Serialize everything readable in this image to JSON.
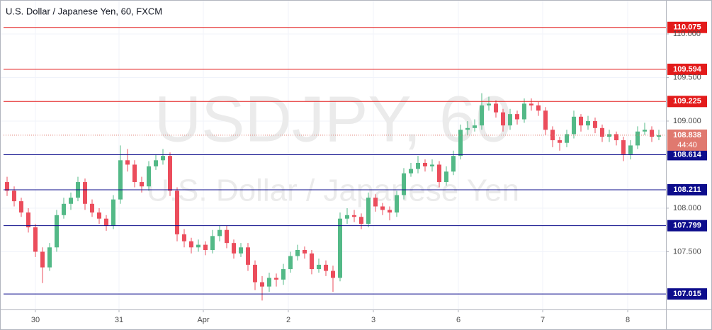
{
  "chart_data": {
    "type": "candlestick",
    "title": "U.S. Dollar / Japanese Yen, 60, FXCM",
    "watermark": "USDJPY, 60",
    "watermark_subtitle": "U.S. Dollar / Japanese Yen",
    "up_color": "#53b987",
    "down_color": "#eb4d5c",
    "grid": true,
    "xlim": [
      -0.5,
      93
    ],
    "xticks": [
      {
        "value": 4,
        "label": "30"
      },
      {
        "value": 15.8,
        "label": "31"
      },
      {
        "value": 27.7,
        "label": "Apr"
      },
      {
        "value": 39.7,
        "label": "2"
      },
      {
        "value": 51.7,
        "label": "3"
      },
      {
        "value": 63.7,
        "label": "6"
      },
      {
        "value": 75.6,
        "label": "7"
      },
      {
        "value": 87.6,
        "label": "8"
      }
    ],
    "ylim": [
      106.837,
      110.39
    ],
    "yticks": [
      {
        "value": 107.5,
        "label": "107.500"
      },
      {
        "value": 108,
        "label": "108.000"
      },
      {
        "value": 109,
        "label": "109.000"
      },
      {
        "value": 109.5,
        "label": "109.500"
      },
      {
        "value": 110,
        "label": "110.000"
      }
    ],
    "levels": [
      {
        "value": 110.075,
        "color": "#e31b1b"
      },
      {
        "value": 109.594,
        "color": "#e31b1b"
      },
      {
        "value": 109.225,
        "color": "#e31b1b"
      },
      {
        "value": 108.614,
        "color": "#0d0d8c"
      },
      {
        "value": 108.211,
        "color": "#0d0d8c"
      },
      {
        "value": 107.799,
        "color": "#0d0d8c"
      },
      {
        "value": 107.015,
        "color": "#0d0d8c"
      }
    ],
    "last_price": {
      "value": 108.838,
      "countdown": "44:40",
      "color": "#e0796f"
    },
    "open": [
      108.3,
      108.2,
      108.08,
      107.95,
      107.78,
      107.5,
      107.32,
      107.55,
      107.92,
      108.05,
      108.12,
      108.3,
      108.05,
      107.95,
      107.88,
      107.8,
      108.1,
      108.55,
      108.5,
      108.3,
      108.25,
      108.48,
      108.55,
      108.6,
      108.2,
      107.7,
      107.62,
      107.55,
      107.58,
      107.52,
      107.68,
      107.75,
      107.6,
      107.48,
      107.55,
      107.35,
      107.15,
      107.1,
      107.2,
      107.18,
      107.3,
      107.45,
      107.52,
      107.48,
      107.3,
      107.35,
      107.28,
      107.2,
      107.88,
      107.92,
      107.9,
      107.82,
      108.12,
      108.02,
      107.98,
      107.95,
      108.15,
      108.4,
      108.45,
      108.52,
      108.48,
      108.5,
      108.3,
      108.42,
      108.6,
      108.9,
      108.92,
      108.95,
      109.18,
      109.2,
      109.1,
      108.95,
      109.08,
      109.02,
      109.2,
      109.18,
      109.12,
      108.9,
      108.78,
      108.75,
      108.85,
      109.05,
      108.95,
      109.0,
      108.92,
      108.82,
      108.85,
      108.78,
      108.62,
      108.72,
      108.88,
      108.9,
      108.82
    ],
    "high": [
      108.36,
      108.25,
      108.12,
      108.0,
      107.82,
      107.55,
      107.6,
      107.98,
      108.12,
      108.18,
      108.36,
      108.34,
      108.1,
      108.0,
      107.92,
      108.15,
      108.72,
      108.68,
      108.55,
      108.36,
      108.54,
      108.62,
      108.68,
      108.64,
      108.24,
      107.76,
      107.66,
      107.64,
      107.62,
      107.75,
      107.8,
      107.8,
      107.64,
      107.6,
      107.6,
      107.4,
      107.22,
      107.26,
      107.25,
      107.36,
      107.5,
      107.58,
      107.56,
      107.52,
      107.42,
      107.4,
      107.34,
      107.95,
      108.0,
      107.98,
      107.94,
      108.18,
      108.16,
      108.06,
      108.02,
      108.2,
      108.46,
      108.52,
      108.6,
      108.56,
      108.56,
      108.54,
      108.48,
      108.66,
      108.96,
      109.0,
      109.02,
      109.32,
      109.28,
      109.24,
      109.14,
      109.14,
      109.12,
      109.26,
      109.26,
      109.22,
      109.16,
      108.94,
      108.82,
      108.9,
      109.12,
      109.08,
      109.06,
      109.04,
      108.96,
      108.9,
      108.88,
      108.82,
      108.78,
      108.94,
      108.98,
      108.94,
      108.9
    ],
    "low": [
      108.14,
      108.02,
      107.9,
      107.72,
      107.44,
      107.14,
      107.28,
      107.5,
      107.88,
      107.98,
      108.08,
      107.98,
      107.9,
      107.82,
      107.74,
      107.76,
      108.05,
      108.42,
      108.24,
      108.18,
      108.2,
      108.44,
      108.5,
      108.14,
      107.62,
      107.55,
      107.48,
      107.5,
      107.46,
      107.48,
      107.62,
      107.54,
      107.42,
      107.44,
      107.28,
      107.06,
      106.94,
      107.04,
      107.1,
      107.12,
      107.26,
      107.4,
      107.42,
      107.24,
      107.26,
      107.22,
      107.04,
      107.16,
      107.82,
      107.84,
      107.76,
      107.78,
      107.96,
      107.92,
      107.86,
      107.9,
      108.1,
      108.36,
      108.4,
      108.42,
      108.42,
      108.24,
      108.26,
      108.38,
      108.56,
      108.84,
      108.88,
      108.9,
      109.12,
      109.04,
      108.88,
      108.9,
      108.96,
      108.98,
      109.12,
      109.06,
      108.84,
      108.7,
      108.66,
      108.7,
      108.8,
      108.88,
      108.9,
      108.86,
      108.76,
      108.76,
      108.72,
      108.54,
      108.56,
      108.68,
      108.84,
      108.76,
      108.78
    ],
    "close": [
      108.2,
      108.08,
      107.95,
      107.78,
      107.5,
      107.32,
      107.55,
      107.92,
      108.05,
      108.12,
      108.3,
      108.05,
      107.95,
      107.88,
      107.8,
      108.1,
      108.55,
      108.5,
      108.3,
      108.25,
      108.48,
      108.55,
      108.6,
      108.2,
      107.7,
      107.62,
      107.55,
      107.58,
      107.52,
      107.68,
      107.75,
      107.6,
      107.48,
      107.55,
      107.35,
      107.15,
      107.1,
      107.2,
      107.18,
      107.3,
      107.45,
      107.52,
      107.48,
      107.3,
      107.35,
      107.28,
      107.2,
      107.88,
      107.92,
      107.9,
      107.82,
      108.12,
      108.02,
      107.98,
      107.95,
      108.15,
      108.4,
      108.45,
      108.52,
      108.48,
      108.5,
      108.3,
      108.42,
      108.6,
      108.9,
      108.92,
      108.95,
      109.18,
      109.2,
      109.1,
      108.95,
      109.08,
      109.02,
      109.2,
      109.18,
      109.12,
      108.9,
      108.78,
      108.75,
      108.85,
      109.05,
      108.95,
      109.0,
      108.92,
      108.82,
      108.85,
      108.78,
      108.62,
      108.72,
      108.88,
      108.9,
      108.82,
      108.838
    ]
  }
}
